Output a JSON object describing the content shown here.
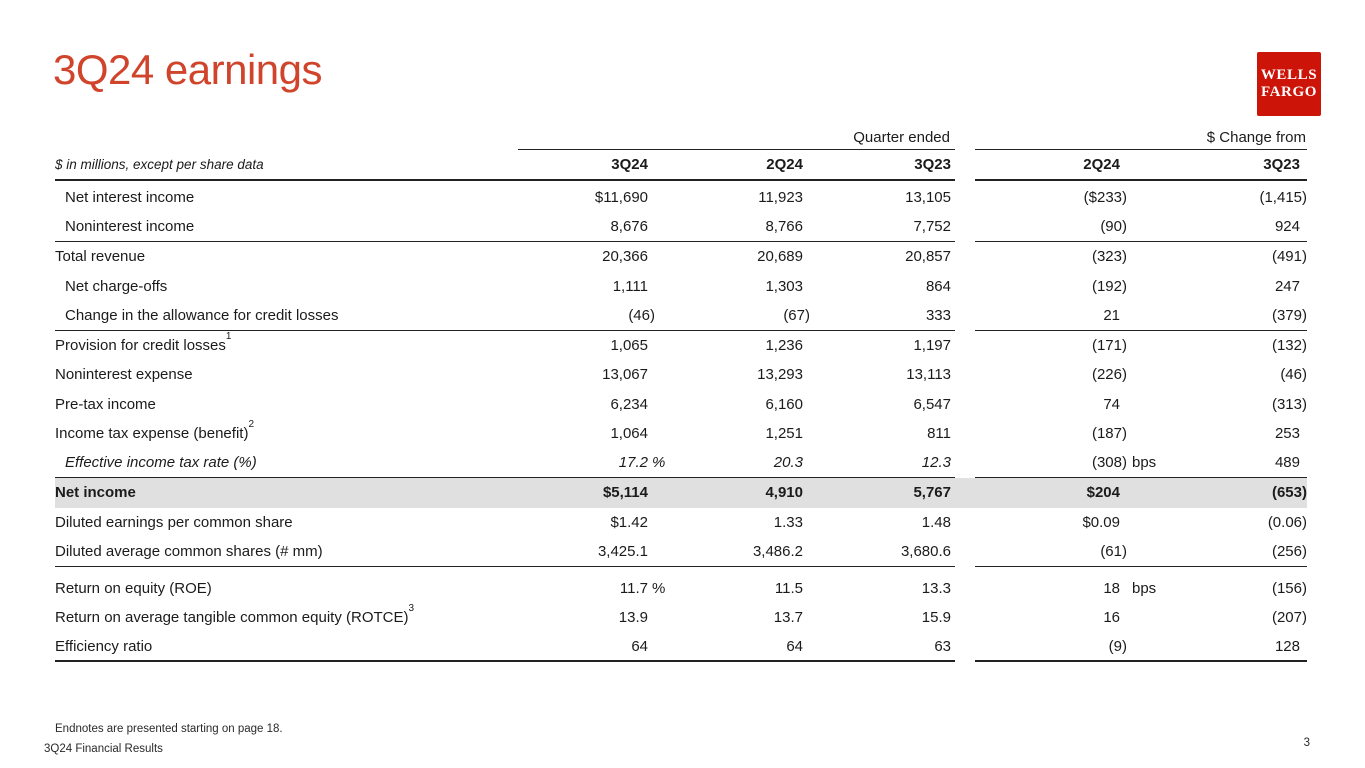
{
  "slide": {
    "title": "3Q24 earnings",
    "logo": {
      "line1": "WELLS",
      "line2": "FARGO"
    },
    "colors": {
      "title_red": "#d0442c",
      "logo_red": "#cd1409",
      "band_gray": "#e0e0e0"
    },
    "footer": {
      "endnotes": "Endnotes are presented starting on page 18.",
      "deck_name": "3Q24 Financial Results",
      "page_number": "3"
    }
  },
  "table": {
    "note": "$ in millions, except per share data",
    "group_headers": [
      {
        "label": "Quarter ended"
      },
      {
        "label": "$ Change from"
      }
    ],
    "columns": [
      "3Q24",
      "2Q24",
      "3Q23",
      "2Q24",
      "3Q23"
    ],
    "rows": [
      {
        "label": "Net interest income",
        "indent": true,
        "values": [
          "$11,690",
          "11,923",
          "13,105",
          "($233)",
          "(1,415)"
        ]
      },
      {
        "label": "Noninterest income",
        "indent": true,
        "rule": "normal",
        "values": [
          "8,676",
          "8,766",
          "7,752",
          "(90)",
          "924"
        ]
      },
      {
        "label": "Total revenue",
        "values": [
          "20,366",
          "20,689",
          "20,857",
          "(323)",
          "(491)"
        ]
      },
      {
        "label": "Net charge-offs",
        "indent": true,
        "values": [
          "1,111",
          "1,303",
          "864",
          "(192)",
          "247"
        ]
      },
      {
        "label": "Change in the allowance for credit losses",
        "indent": true,
        "rule": "normal",
        "values": [
          "(46)",
          "(67)",
          "333",
          "21",
          "(379)"
        ]
      },
      {
        "label": "Provision for credit losses",
        "sup": "1",
        "values": [
          "1,065",
          "1,236",
          "1,197",
          "(171)",
          "(132)"
        ]
      },
      {
        "label": "Noninterest expense",
        "values": [
          "13,067",
          "13,293",
          "13,113",
          "(226)",
          "(46)"
        ]
      },
      {
        "label": "Pre-tax income",
        "values": [
          "6,234",
          "6,160",
          "6,547",
          "74",
          "(313)"
        ]
      },
      {
        "label": "Income tax expense (benefit)",
        "sup": "2",
        "values": [
          "1,064",
          "1,251",
          "811",
          "(187)",
          "253"
        ]
      },
      {
        "label": "Effective income tax rate (%)",
        "indent": true,
        "italic": true,
        "rule": "normal",
        "pct": "%",
        "bps": "bps",
        "values": [
          "17.2",
          "20.3",
          "12.3",
          "(308)",
          "489"
        ]
      },
      {
        "label": "Net income",
        "bold": true,
        "band": true,
        "values": [
          "$5,114",
          "4,910",
          "5,767",
          "$204",
          "(653)"
        ]
      },
      {
        "label": "Diluted earnings per common share",
        "values": [
          "$1.42",
          "1.33",
          "1.48",
          "$0.09",
          "(0.06)"
        ]
      },
      {
        "label": "Diluted average common shares (# mm)",
        "rule": "normal",
        "values": [
          "3,425.1",
          "3,486.2",
          "3,680.6",
          "(61)",
          "(256)"
        ]
      },
      {
        "label": "Return on equity (ROE)",
        "gap_before": true,
        "pct": "%",
        "bps": "bps",
        "values": [
          "11.7",
          "11.5",
          "13.3",
          "18",
          "(156)"
        ]
      },
      {
        "label": "Return on average tangible common equity (ROTCE)",
        "sup": "3",
        "values": [
          "13.9",
          "13.7",
          "15.9",
          "16",
          "(207)"
        ]
      },
      {
        "label": "Efficiency ratio",
        "rule": "thick",
        "values": [
          "64",
          "64",
          "63",
          "(9)",
          "128"
        ]
      }
    ]
  }
}
